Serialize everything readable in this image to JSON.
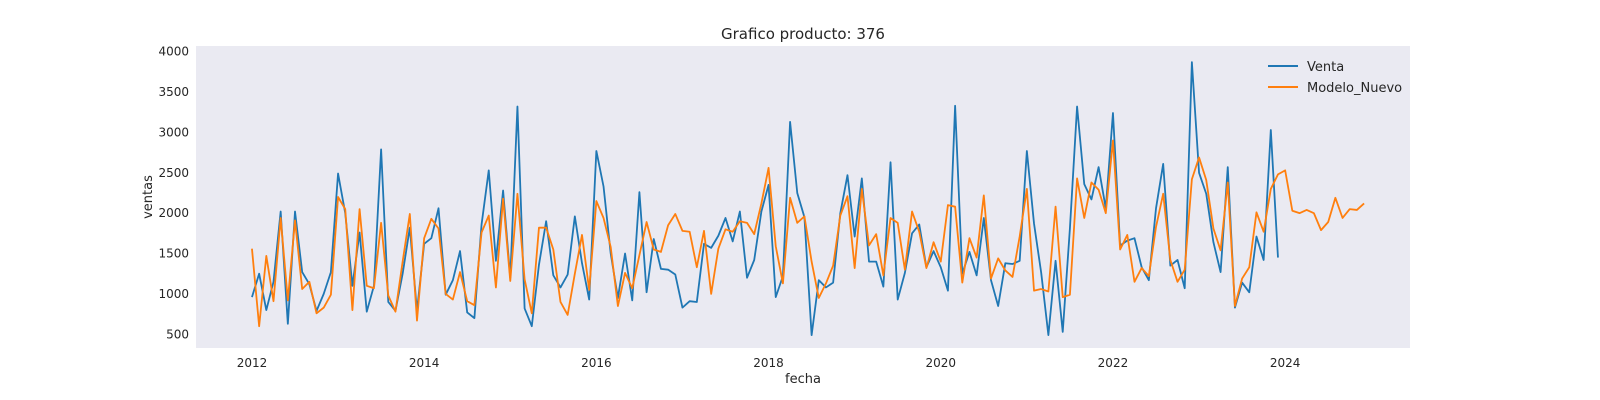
{
  "chart_data": {
    "type": "line",
    "title": "Grafico producto: 376",
    "xlabel": "fecha",
    "ylabel": "ventas",
    "xlim": [
      2011.35,
      2025.45
    ],
    "ylim": [
      330,
      4070
    ],
    "x_ticks": [
      2012,
      2014,
      2016,
      2018,
      2020,
      2022,
      2024
    ],
    "y_ticks": [
      500,
      1000,
      1500,
      2000,
      2500,
      3000,
      3500,
      4000
    ],
    "grid": false,
    "legend_position": "top-right",
    "background": "#eaeaf2",
    "start_date": "2012-01",
    "step": "monthly",
    "series": [
      {
        "name": "Venta",
        "color": "#1f77b4",
        "values": [
          960,
          1250,
          800,
          1150,
          2020,
          630,
          2020,
          1270,
          1120,
          790,
          1000,
          1270,
          2490,
          2000,
          1100,
          1760,
          780,
          1100,
          2790,
          900,
          790,
          1250,
          1820,
          790,
          1620,
          1690,
          2060,
          990,
          1170,
          1530,
          770,
          700,
          1860,
          2530,
          1410,
          2280,
          1200,
          3320,
          820,
          600,
          1360,
          1900,
          1230,
          1080,
          1240,
          1960,
          1380,
          930,
          2770,
          2330,
          1500,
          950,
          1500,
          920,
          2260,
          1020,
          1680,
          1310,
          1300,
          1240,
          830,
          910,
          900,
          1620,
          1570,
          1720,
          1940,
          1650,
          2020,
          1200,
          1420,
          2020,
          2350,
          960,
          1220,
          3130,
          2250,
          1950,
          490,
          1170,
          1080,
          1140,
          2000,
          2470,
          1710,
          2430,
          1400,
          1400,
          1090,
          2630,
          930,
          1260,
          1750,
          1860,
          1330,
          1530,
          1330,
          1040,
          3330,
          1250,
          1520,
          1230,
          1940,
          1170,
          850,
          1380,
          1370,
          1410,
          2770,
          1870,
          1260,
          490,
          1410,
          530,
          1810,
          3320,
          2360,
          2170,
          2570,
          2060,
          3240,
          1600,
          1660,
          1690,
          1330,
          1170,
          2060,
          2610,
          1350,
          1420,
          1070,
          3870,
          2500,
          2240,
          1640,
          1270,
          2570,
          830,
          1140,
          1020,
          1710,
          1420,
          3030,
          1450
        ]
      },
      {
        "name": "Modelo_Nuevo",
        "color": "#ff7f0e",
        "values": [
          1560,
          600,
          1470,
          910,
          1940,
          920,
          1910,
          1060,
          1150,
          760,
          830,
          990,
          2200,
          2050,
          800,
          2050,
          1100,
          1070,
          1880,
          980,
          780,
          1400,
          1990,
          670,
          1690,
          1930,
          1810,
          1000,
          930,
          1270,
          910,
          860,
          1760,
          1970,
          1080,
          2180,
          1160,
          2240,
          1180,
          760,
          1820,
          1820,
          1550,
          900,
          740,
          1250,
          1730,
          1050,
          2150,
          1940,
          1580,
          850,
          1260,
          1070,
          1480,
          1890,
          1550,
          1520,
          1850,
          1990,
          1780,
          1770,
          1330,
          1780,
          1000,
          1560,
          1800,
          1770,
          1900,
          1880,
          1740,
          2120,
          2560,
          1590,
          1130,
          2190,
          1880,
          1960,
          1400,
          950,
          1130,
          1350,
          1970,
          2210,
          1320,
          2300,
          1600,
          1740,
          1230,
          1940,
          1880,
          1300,
          2020,
          1770,
          1320,
          1640,
          1400,
          2100,
          2080,
          1140,
          1690,
          1450,
          2220,
          1190,
          1440,
          1290,
          1210,
          1710,
          2300,
          1040,
          1060,
          1030,
          2080,
          960,
          990,
          2430,
          1940,
          2380,
          2290,
          2000,
          2900,
          1550,
          1730,
          1150,
          1320,
          1220,
          1830,
          2240,
          1420,
          1150,
          1300,
          2420,
          2690,
          2410,
          1810,
          1540,
          2380,
          850,
          1190,
          1330,
          2010,
          1770,
          2300,
          2480,
          2530,
          2030,
          2000,
          2040,
          2000,
          1790,
          1890,
          2190,
          1940,
          2050,
          2040,
          2120
        ]
      }
    ]
  }
}
